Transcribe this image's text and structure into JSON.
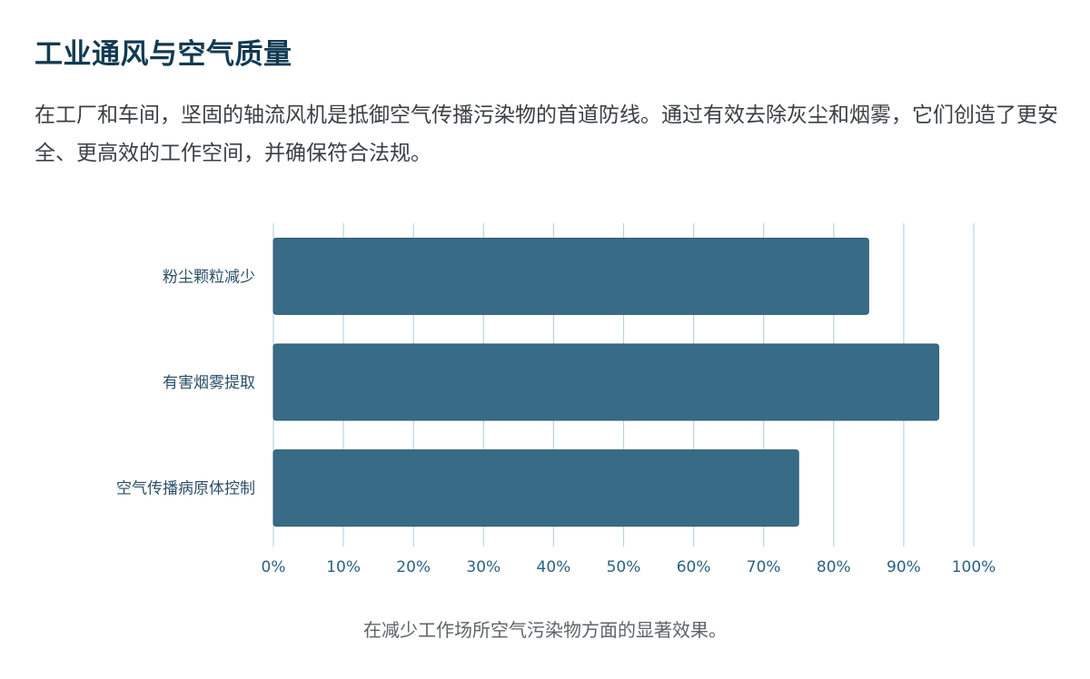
{
  "header": {
    "title": "工业通风与空气质量",
    "description": "在工厂和车间，坚固的轴流风机是抵御空气传播污染物的首道防线。通过有效去除灰尘和烟雾，它们创造了更安全、更高效的工作空间，并确保符合法规。"
  },
  "chart_data": {
    "type": "bar",
    "orientation": "horizontal",
    "categories": [
      "粉尘颗粒减少",
      "有害烟雾提取",
      "空气传播病原体控制"
    ],
    "values": [
      85,
      95,
      75
    ],
    "xlim": [
      0,
      100
    ],
    "x_ticks": [
      "0%",
      "10%",
      "20%",
      "30%",
      "40%",
      "50%",
      "60%",
      "70%",
      "80%",
      "90%",
      "100%"
    ],
    "grid": "vertical",
    "caption": "在减少工作场所空气污染物方面的显著效果。",
    "colors": {
      "bar": "#386c86",
      "bar_stroke": "#2b5a72",
      "grid": "#b9d4e3",
      "tick_text": "#2b6282",
      "category_text": "#2b4f66"
    }
  }
}
